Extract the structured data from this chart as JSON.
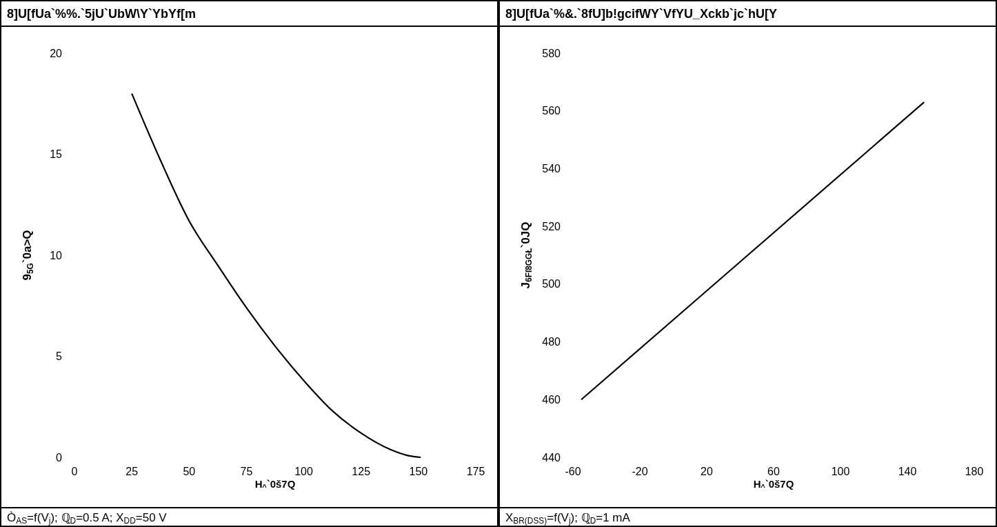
{
  "chart_data": [
    {
      "type": "line",
      "title": "8]U[fUa`%%.`5jU`UbW\\Y`YbYf[m",
      "xlabel": "H$_{^}$`0š7Q",
      "ylabel": "9$_{5G}$`0a>Q",
      "annotations": [
        "Ò$_{AS}$=f(V$_{j}$); ℚ$_{D}$=0.5 A; X$_{DD}$=50 V"
      ],
      "x": [
        25,
        37.5,
        50,
        62.5,
        75,
        87.5,
        100,
        112.5,
        125,
        137.5,
        145,
        151
      ],
      "series": [
        {
          "color": "#000000",
          "values": [
            18,
            14.7,
            11.7,
            9.5,
            7.4,
            5.5,
            3.8,
            2.3,
            1.2,
            0.4,
            0.1,
            0
          ]
        }
      ],
      "xlim": [
        0,
        175
      ],
      "xticks": [
        0,
        25,
        50,
        75,
        100,
        125,
        150,
        175
      ],
      "ylim": [
        0,
        20
      ],
      "yticks": [
        0,
        5,
        10,
        15,
        20
      ]
    },
    {
      "type": "line",
      "title": "8]U[fUa`%&.`8fU]b!gcifWY`VfYU_Xckb`jc`hU[Y",
      "xlabel": "H$_{^}$`0š7Q",
      "ylabel": "J$_{6Fſ8GGŁ}$`0JQ",
      "annotations": [
        "X$_{BR(DSS)}$=f(V$_{j}$); ℚ$_{D}$=1 mA"
      ],
      "x": [
        -55,
        150
      ],
      "series": [
        {
          "color": "#000000",
          "values": [
            460,
            563
          ]
        }
      ],
      "xlim": [
        -60,
        180
      ],
      "xticks": [
        -60,
        -20,
        20,
        60,
        100,
        140,
        180
      ],
      "ylim": [
        440,
        580
      ],
      "yticks": [
        440,
        460,
        480,
        500,
        520,
        540,
        560,
        580
      ]
    }
  ]
}
